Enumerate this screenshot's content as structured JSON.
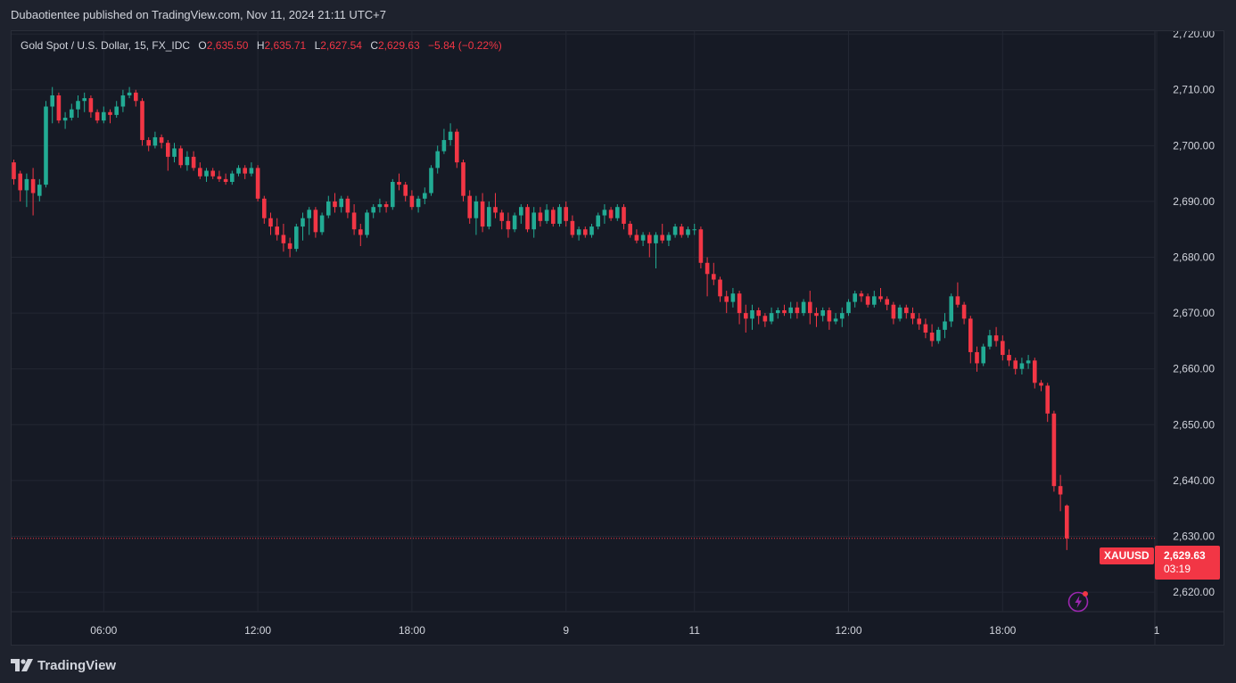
{
  "header": {
    "publisher_line": "Dubaotientee published on TradingView.com, Nov 11, 2024 21:11 UTC+7"
  },
  "legend": {
    "symbol": "Gold Spot / U.S. Dollar, 15, FX_IDC",
    "o_label": "O",
    "o_value": "2,635.50",
    "h_label": "H",
    "h_value": "2,635.71",
    "l_label": "L",
    "l_value": "2,627.54",
    "c_label": "C",
    "c_value": "2,629.63",
    "change": "−5.84 (−0.22%)"
  },
  "price_tag": {
    "symbol": "XAUUSD",
    "price": "2,629.63",
    "countdown": "03:19"
  },
  "footer": {
    "brand": "TradingView"
  },
  "colors": {
    "up": "#22ab94",
    "down": "#f23645",
    "background": "#161a25",
    "grid": "#232733",
    "text": "#d1d4dc"
  },
  "chart_data": {
    "type": "candlestick",
    "ylim": [
      2616.5,
      2720.5
    ],
    "y_ticks": [
      2620,
      2630,
      2640,
      2650,
      2660,
      2670,
      2680,
      2690,
      2700,
      2710,
      2720
    ],
    "y_tick_labels": [
      "2,620.00",
      "2,630.00",
      "2,640.00",
      "2,650.00",
      "2,660.00",
      "2,670.00",
      "2,680.00",
      "2,690.00",
      "2,700.00",
      "2,710.00",
      "2,720.00"
    ],
    "x_ticks": [
      {
        "label": "06:00",
        "index": 14
      },
      {
        "label": "12:00",
        "index": 38
      },
      {
        "label": "18:00",
        "index": 62
      },
      {
        "label": "9",
        "index": 86
      },
      {
        "label": "11",
        "index": 106
      },
      {
        "label": "12:00",
        "index": 130
      },
      {
        "label": "18:00",
        "index": 154
      },
      {
        "label": "1",
        "index": 178
      }
    ],
    "last_price": 2629.63,
    "ohlc": [
      [
        2697.0,
        2697.5,
        2693.0,
        2694.0
      ],
      [
        2695.0,
        2695.5,
        2690.0,
        2692.0
      ],
      [
        2692.0,
        2695.0,
        2689.0,
        2694.0
      ],
      [
        2694.0,
        2696.0,
        2687.5,
        2691.5
      ],
      [
        2691.0,
        2694.0,
        2690.0,
        2693.0
      ],
      [
        2693.0,
        2708.0,
        2692.5,
        2707.0
      ],
      [
        2707.0,
        2710.5,
        2704.0,
        2709.0
      ],
      [
        2709.0,
        2709.5,
        2704.0,
        2704.5
      ],
      [
        2704.5,
        2706.0,
        2703.0,
        2705.0
      ],
      [
        2705.0,
        2707.5,
        2704.5,
        2706.5
      ],
      [
        2706.5,
        2709.0,
        2705.0,
        2708.0
      ],
      [
        2708.0,
        2709.5,
        2706.0,
        2708.5
      ],
      [
        2708.5,
        2709.0,
        2705.0,
        2706.0
      ],
      [
        2706.0,
        2706.5,
        2704.0,
        2704.5
      ],
      [
        2704.5,
        2707.0,
        2704.0,
        2706.0
      ],
      [
        2706.0,
        2706.5,
        2704.0,
        2705.5
      ],
      [
        2705.5,
        2708.0,
        2705.0,
        2707.0
      ],
      [
        2707.0,
        2710.0,
        2706.0,
        2709.0
      ],
      [
        2709.0,
        2710.5,
        2708.5,
        2709.5
      ],
      [
        2709.5,
        2710.0,
        2707.0,
        2708.0
      ],
      [
        2708.0,
        2708.5,
        2700.0,
        2701.0
      ],
      [
        2701.0,
        2701.5,
        2699.0,
        2700.0
      ],
      [
        2700.0,
        2702.5,
        2699.5,
        2701.5
      ],
      [
        2701.5,
        2702.0,
        2699.5,
        2700.5
      ],
      [
        2700.5,
        2701.0,
        2695.5,
        2698.0
      ],
      [
        2698.0,
        2700.5,
        2697.0,
        2699.5
      ],
      [
        2699.5,
        2700.0,
        2696.0,
        2696.5
      ],
      [
        2696.5,
        2699.0,
        2695.5,
        2698.0
      ],
      [
        2698.0,
        2699.0,
        2695.5,
        2696.0
      ],
      [
        2696.0,
        2697.0,
        2694.0,
        2694.5
      ],
      [
        2694.5,
        2696.0,
        2693.5,
        2695.5
      ],
      [
        2695.5,
        2696.0,
        2694.0,
        2694.5
      ],
      [
        2694.5,
        2695.5,
        2693.5,
        2694.0
      ],
      [
        2694.0,
        2695.0,
        2693.0,
        2693.5
      ],
      [
        2693.5,
        2695.5,
        2693.0,
        2695.0
      ],
      [
        2695.0,
        2696.5,
        2694.5,
        2696.0
      ],
      [
        2696.0,
        2696.5,
        2694.0,
        2695.0
      ],
      [
        2695.0,
        2697.0,
        2694.5,
        2696.0
      ],
      [
        2696.0,
        2696.5,
        2690.0,
        2690.5
      ],
      [
        2690.5,
        2691.0,
        2686.0,
        2687.0
      ],
      [
        2687.0,
        2688.0,
        2684.0,
        2685.5
      ],
      [
        2685.5,
        2687.0,
        2683.0,
        2684.0
      ],
      [
        2684.0,
        2686.0,
        2681.0,
        2682.5
      ],
      [
        2682.5,
        2683.5,
        2680.0,
        2681.5
      ],
      [
        2681.5,
        2686.0,
        2681.0,
        2685.5
      ],
      [
        2685.5,
        2688.0,
        2683.0,
        2687.0
      ],
      [
        2687.0,
        2689.0,
        2684.0,
        2688.5
      ],
      [
        2688.5,
        2689.0,
        2683.5,
        2684.5
      ],
      [
        2684.5,
        2688.0,
        2684.0,
        2687.5
      ],
      [
        2687.5,
        2691.0,
        2687.0,
        2690.0
      ],
      [
        2690.0,
        2691.5,
        2688.0,
        2689.0
      ],
      [
        2689.0,
        2691.0,
        2688.0,
        2690.5
      ],
      [
        2690.5,
        2691.0,
        2687.0,
        2688.0
      ],
      [
        2688.0,
        2689.5,
        2684.0,
        2685.0
      ],
      [
        2685.0,
        2686.0,
        2682.0,
        2684.0
      ],
      [
        2684.0,
        2688.5,
        2683.5,
        2688.0
      ],
      [
        2688.0,
        2689.5,
        2687.0,
        2689.0
      ],
      [
        2689.0,
        2690.5,
        2688.0,
        2689.5
      ],
      [
        2689.5,
        2690.0,
        2688.0,
        2689.0
      ],
      [
        2689.0,
        2694.0,
        2688.5,
        2693.5
      ],
      [
        2693.5,
        2695.0,
        2692.0,
        2693.0
      ],
      [
        2693.0,
        2693.5,
        2690.0,
        2691.0
      ],
      [
        2691.0,
        2692.0,
        2688.5,
        2689.0
      ],
      [
        2689.0,
        2691.0,
        2688.0,
        2690.5
      ],
      [
        2690.5,
        2692.5,
        2689.5,
        2691.5
      ],
      [
        2691.5,
        2696.5,
        2691.0,
        2696.0
      ],
      [
        2696.0,
        2700.0,
        2695.0,
        2699.0
      ],
      [
        2699.0,
        2703.0,
        2698.5,
        2701.0
      ],
      [
        2701.0,
        2704.0,
        2700.0,
        2702.5
      ],
      [
        2702.5,
        2703.0,
        2696.0,
        2697.0
      ],
      [
        2697.0,
        2697.5,
        2690.0,
        2691.0
      ],
      [
        2691.0,
        2692.0,
        2686.0,
        2687.0
      ],
      [
        2687.0,
        2691.0,
        2684.0,
        2690.0
      ],
      [
        2690.0,
        2691.5,
        2684.5,
        2685.5
      ],
      [
        2685.5,
        2690.0,
        2685.0,
        2689.0
      ],
      [
        2689.0,
        2691.5,
        2687.0,
        2688.0
      ],
      [
        2688.0,
        2688.5,
        2685.0,
        2686.5
      ],
      [
        2686.5,
        2688.0,
        2683.5,
        2685.0
      ],
      [
        2685.0,
        2688.0,
        2684.5,
        2687.5
      ],
      [
        2687.5,
        2689.5,
        2686.0,
        2689.0
      ],
      [
        2689.0,
        2689.5,
        2684.5,
        2685.0
      ],
      [
        2685.0,
        2689.0,
        2683.5,
        2688.0
      ],
      [
        2688.0,
        2689.0,
        2685.5,
        2686.5
      ],
      [
        2686.5,
        2689.5,
        2686.0,
        2688.5
      ],
      [
        2688.5,
        2689.0,
        2685.5,
        2686.0
      ],
      [
        2686.0,
        2689.5,
        2685.5,
        2689.0
      ],
      [
        2689.0,
        2690.0,
        2685.5,
        2686.5
      ],
      [
        2686.5,
        2687.5,
        2683.5,
        2684.0
      ],
      [
        2684.0,
        2685.5,
        2683.0,
        2685.0
      ],
      [
        2685.0,
        2685.5,
        2683.5,
        2684.0
      ],
      [
        2684.0,
        2686.0,
        2683.5,
        2685.5
      ],
      [
        2685.5,
        2688.0,
        2685.0,
        2687.5
      ],
      [
        2687.5,
        2689.5,
        2686.0,
        2688.5
      ],
      [
        2688.5,
        2689.0,
        2686.5,
        2687.0
      ],
      [
        2687.0,
        2689.5,
        2686.5,
        2689.0
      ],
      [
        2689.0,
        2689.5,
        2685.0,
        2686.0
      ],
      [
        2686.0,
        2686.5,
        2683.5,
        2684.0
      ],
      [
        2684.0,
        2685.0,
        2682.5,
        2683.0
      ],
      [
        2683.0,
        2684.5,
        2682.0,
        2684.0
      ],
      [
        2684.0,
        2684.5,
        2680.0,
        2682.5
      ],
      [
        2682.5,
        2684.5,
        2678.0,
        2684.0
      ],
      [
        2684.0,
        2686.0,
        2682.5,
        2683.0
      ],
      [
        2683.0,
        2684.5,
        2682.0,
        2684.0
      ],
      [
        2684.0,
        2686.0,
        2683.5,
        2685.5
      ],
      [
        2685.5,
        2686.0,
        2683.5,
        2684.0
      ],
      [
        2684.0,
        2685.5,
        2683.5,
        2685.0
      ],
      [
        2685.0,
        2686.0,
        2684.0,
        2685.0
      ],
      [
        2685.0,
        2685.5,
        2678.0,
        2679.0
      ],
      [
        2679.0,
        2680.0,
        2673.0,
        2677.0
      ],
      [
        2677.0,
        2679.0,
        2675.0,
        2676.0
      ],
      [
        2676.0,
        2676.5,
        2672.0,
        2673.0
      ],
      [
        2673.0,
        2674.0,
        2670.0,
        2672.0
      ],
      [
        2672.0,
        2674.5,
        2671.0,
        2673.5
      ],
      [
        2673.5,
        2674.0,
        2668.0,
        2670.0
      ],
      [
        2670.0,
        2671.5,
        2666.5,
        2669.0
      ],
      [
        2669.0,
        2671.5,
        2667.0,
        2670.5
      ],
      [
        2670.5,
        2671.0,
        2668.0,
        2669.5
      ],
      [
        2669.5,
        2670.0,
        2667.5,
        2668.5
      ],
      [
        2668.5,
        2671.0,
        2668.0,
        2670.0
      ],
      [
        2670.0,
        2671.0,
        2669.0,
        2670.5
      ],
      [
        2670.5,
        2671.5,
        2669.5,
        2670.0
      ],
      [
        2670.0,
        2672.0,
        2669.0,
        2671.0
      ],
      [
        2671.0,
        2672.0,
        2669.0,
        2670.0
      ],
      [
        2670.0,
        2672.5,
        2669.5,
        2672.0
      ],
      [
        2672.0,
        2674.0,
        2668.0,
        2670.0
      ],
      [
        2670.0,
        2671.0,
        2667.5,
        2669.5
      ],
      [
        2669.5,
        2671.0,
        2668.5,
        2670.5
      ],
      [
        2670.5,
        2671.0,
        2667.0,
        2668.5
      ],
      [
        2668.5,
        2670.0,
        2668.0,
        2669.0
      ],
      [
        2669.0,
        2671.0,
        2667.5,
        2670.0
      ],
      [
        2670.0,
        2672.5,
        2669.5,
        2672.0
      ],
      [
        2672.0,
        2674.0,
        2671.0,
        2673.5
      ],
      [
        2673.5,
        2674.0,
        2672.0,
        2673.0
      ],
      [
        2673.0,
        2673.5,
        2671.0,
        2671.5
      ],
      [
        2671.5,
        2674.0,
        2671.0,
        2673.0
      ],
      [
        2673.0,
        2674.5,
        2672.0,
        2672.5
      ],
      [
        2672.5,
        2673.0,
        2670.5,
        2671.5
      ],
      [
        2671.5,
        2672.0,
        2668.0,
        2669.0
      ],
      [
        2669.0,
        2671.5,
        2668.5,
        2671.0
      ],
      [
        2671.0,
        2671.5,
        2669.0,
        2670.0
      ],
      [
        2670.0,
        2671.0,
        2668.0,
        2669.0
      ],
      [
        2669.0,
        2670.0,
        2667.0,
        2668.0
      ],
      [
        2668.0,
        2669.0,
        2665.5,
        2666.5
      ],
      [
        2666.5,
        2668.0,
        2664.0,
        2665.0
      ],
      [
        2665.0,
        2667.5,
        2664.5,
        2667.0
      ],
      [
        2667.0,
        2670.0,
        2665.5,
        2668.5
      ],
      [
        2668.5,
        2673.5,
        2667.5,
        2673.0
      ],
      [
        2673.0,
        2675.5,
        2671.0,
        2671.5
      ],
      [
        2671.5,
        2672.0,
        2668.0,
        2669.0
      ],
      [
        2669.0,
        2669.5,
        2661.0,
        2663.0
      ],
      [
        2663.0,
        2664.0,
        2659.5,
        2661.0
      ],
      [
        2661.0,
        2664.5,
        2660.5,
        2664.0
      ],
      [
        2664.0,
        2667.0,
        2663.5,
        2666.0
      ],
      [
        2666.0,
        2667.5,
        2664.0,
        2665.0
      ],
      [
        2665.0,
        2666.0,
        2661.5,
        2662.5
      ],
      [
        2662.5,
        2663.5,
        2660.5,
        2661.5
      ],
      [
        2661.5,
        2662.0,
        2659.0,
        2660.0
      ],
      [
        2660.0,
        2662.0,
        2659.0,
        2661.0
      ],
      [
        2661.0,
        2662.5,
        2660.0,
        2661.5
      ],
      [
        2661.5,
        2662.0,
        2656.5,
        2657.5
      ],
      [
        2657.5,
        2658.0,
        2656.0,
        2657.0
      ],
      [
        2657.0,
        2657.5,
        2650.5,
        2652.0
      ],
      [
        2652.0,
        2652.5,
        2638.0,
        2639.0
      ],
      [
        2639.0,
        2641.0,
        2634.5,
        2637.5
      ],
      [
        2635.5,
        2635.71,
        2627.54,
        2629.63
      ]
    ]
  }
}
